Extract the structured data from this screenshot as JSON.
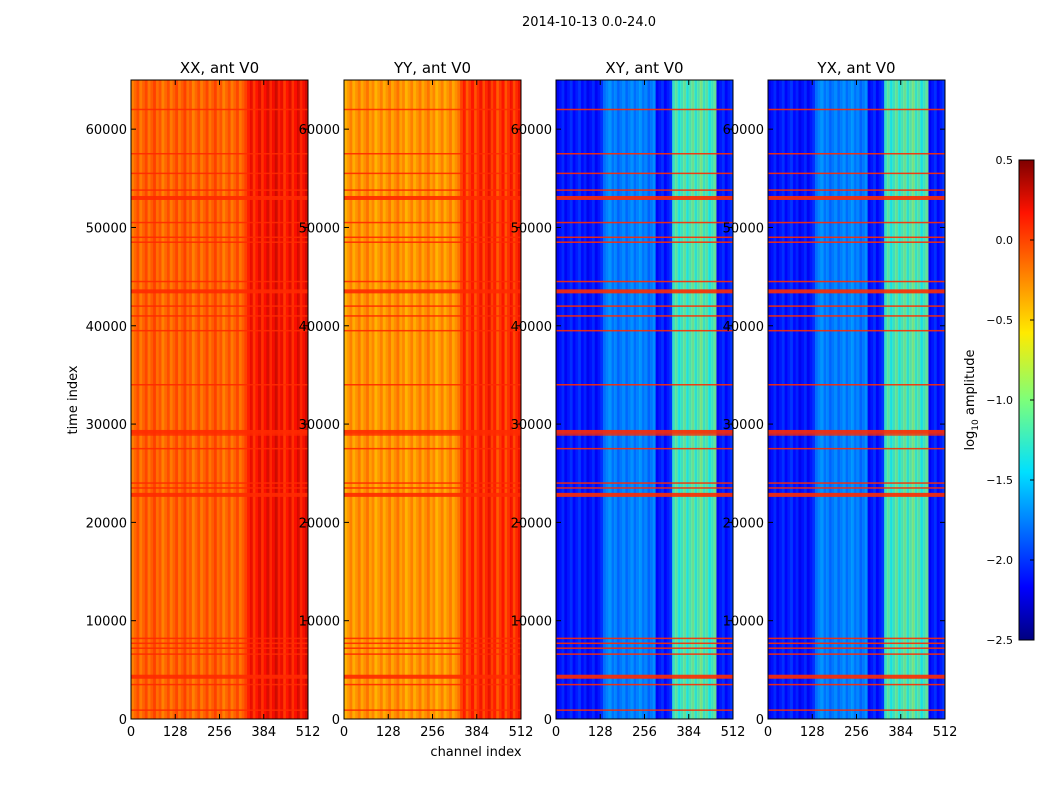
{
  "chart_data": {
    "type": "heatmap",
    "suptitle": "2014-10-13 0.0-24.0",
    "xlabel": "channel index",
    "ylabel": "time index",
    "xlim": [
      0,
      512
    ],
    "ylim": [
      0,
      65000
    ],
    "x_ticks": [
      0,
      128,
      256,
      384,
      512
    ],
    "y_ticks": [
      0,
      10000,
      20000,
      30000,
      40000,
      50000,
      60000
    ],
    "panels": [
      {
        "title": "XX, ant V0",
        "base_level": -0.15,
        "bright_band": [
          330,
          512
        ],
        "bright_level": 0.15
      },
      {
        "title": "YY, ant V0",
        "base_level": -0.3,
        "bright_band": [
          330,
          512
        ],
        "bright_level": 0.05
      },
      {
        "title": "XY, ant V0",
        "base_level": -2.05,
        "bright_band": [
          330,
          460
        ],
        "bright_level": -1.1
      },
      {
        "title": "YX, ant V0",
        "base_level": -2.05,
        "bright_band": [
          330,
          460
        ],
        "bright_level": -1.1
      }
    ],
    "flag_rows": [
      900,
      3500,
      4300,
      6600,
      7200,
      7700,
      8200,
      22800,
      23500,
      24000,
      27500,
      28900,
      29200,
      34000,
      39500,
      41000,
      42000,
      43500,
      44500,
      48500,
      49000,
      50500,
      53000,
      53800,
      55500,
      57500,
      62000
    ],
    "colorbar": {
      "label": "log",
      "label_sub": "10",
      "label_rest": " amplitude",
      "vmin": -2.5,
      "vmax": 0.5,
      "ticks": [
        "0.5",
        "0.0",
        "−0.5",
        "−1.0",
        "−1.5",
        "−2.0",
        "−2.5"
      ],
      "tick_values": [
        0.5,
        0.0,
        -0.5,
        -1.0,
        -1.5,
        -2.0,
        -2.5
      ],
      "colormap": "jet"
    }
  }
}
